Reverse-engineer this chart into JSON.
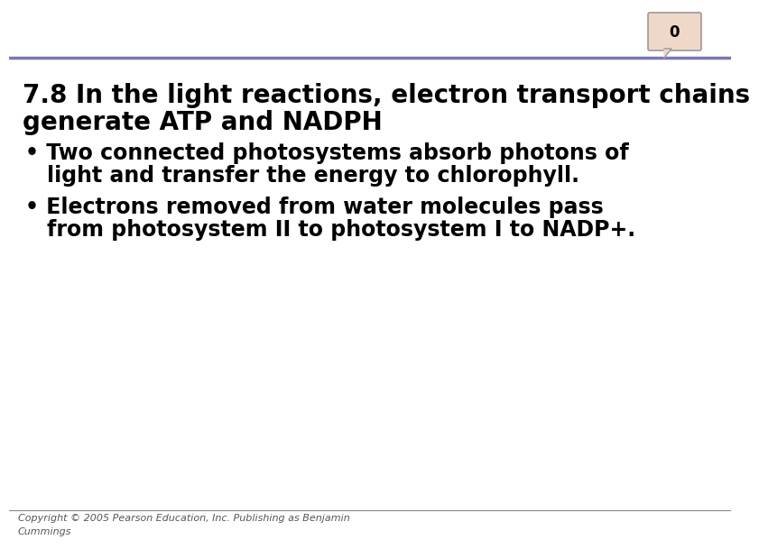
{
  "background_color": "#ffffff",
  "title_line1": "7.8 In the light reactions, electron transport chains",
  "title_line2": "generate ATP and NADPH",
  "bullet1_line1": "Two connected photosystems absorb photons of",
  "bullet1_line2": "light and transfer the energy to chlorophyll.",
  "bullet2_line1": "Electrons removed from water molecules pass",
  "bullet2_line2": "from photosystem II to photosystem I to NADP+.",
  "copyright_line1": "Copyright © 2005 Pearson Education, Inc. Publishing as Benjamin",
  "copyright_line2": "Cummings",
  "slide_number": "0",
  "header_line_color": "#7777bb",
  "footer_line_color": "#888888",
  "title_fontsize": 20,
  "bullet_fontsize": 17,
  "copyright_fontsize": 8,
  "slide_num_fontsize": 12,
  "text_color": "#000000",
  "copyright_color": "#555555",
  "slide_box_color": "#f0d8c8",
  "slide_box_edge": "#999999"
}
